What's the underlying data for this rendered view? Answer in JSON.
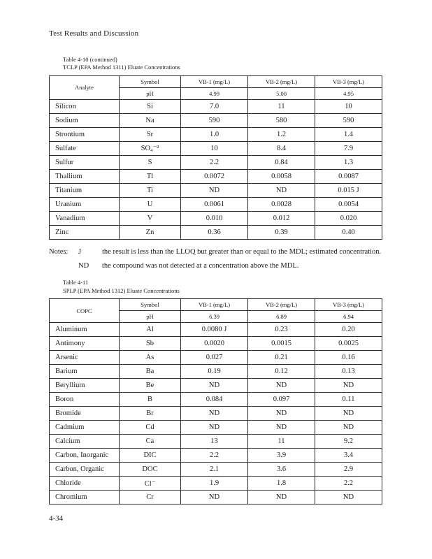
{
  "page": {
    "header": "Test Results and Discussion",
    "footer": "4-34"
  },
  "table_tclp": {
    "caption_line1": "Table 4-10 (continued)",
    "caption_line2": "TCLP (EPA Method 1311) Eluate Concentrations",
    "col_headers": [
      "Analyte",
      "Symbol",
      "VB-1 (mg/L)",
      "VB-2 (mg/L)",
      "VB-3 (mg/L)"
    ],
    "ph_row": [
      "pH",
      "4.99",
      "5.00",
      "4.95"
    ],
    "rows": [
      [
        "Silicon",
        "Si",
        "7.0",
        "11",
        "10"
      ],
      [
        "Sodium",
        "Na",
        "590",
        "580",
        "590"
      ],
      [
        "Strontium",
        "Sr",
        "1.0",
        "1.2",
        "1.4"
      ],
      [
        "Sulfate",
        "SO₄⁻²",
        "10",
        "8.4",
        "7.9"
      ],
      [
        "Sulfur",
        "S",
        "2.2",
        "0.84",
        "1.3"
      ],
      [
        "Thallium",
        "Tl",
        "0.0072",
        "0.0058",
        "0.0087"
      ],
      [
        "Titanium",
        "Ti",
        "ND",
        "ND",
        "0.015 J"
      ],
      [
        "Uranium",
        "U",
        "0.0061",
        "0.0028",
        "0.0054"
      ],
      [
        "Vanadium",
        "V",
        "0.010",
        "0.012",
        "0.020"
      ],
      [
        "Zinc",
        "Zn",
        "0.36",
        "0.39",
        "0.40"
      ]
    ]
  },
  "notes": {
    "label": "Notes:",
    "items": [
      {
        "symbol": "J",
        "text": "the result is less than the LLOQ but greater than or equal to the MDL; estimated concentration."
      },
      {
        "symbol": "ND",
        "text": "the compound was not detected at a concentration above the MDL."
      }
    ]
  },
  "table_splp": {
    "caption_line1": "Table 4-11",
    "caption_line2": "SPLP (EPA Method 1312) Eluate Concentrations",
    "col_headers": [
      "COPC",
      "Symbol",
      "VB-1 (mg/L)",
      "VB-2 (mg/L)",
      "VB-3 (mg/L)"
    ],
    "ph_row": [
      "pH",
      "6.39",
      "6.89",
      "6.94"
    ],
    "rows": [
      [
        "Aluminum",
        "Al",
        "0.0080 J",
        "0.23",
        "0.20"
      ],
      [
        "Antimony",
        "Sb",
        "0.0020",
        "0.0015",
        "0.0025"
      ],
      [
        "Arsenic",
        "As",
        "0.027",
        "0.21",
        "0.16"
      ],
      [
        "Barium",
        "Ba",
        "0.19",
        "0.12",
        "0.13"
      ],
      [
        "Beryllium",
        "Be",
        "ND",
        "ND",
        "ND"
      ],
      [
        "Boron",
        "B",
        "0.084",
        "0.097",
        "0.11"
      ],
      [
        "Bromide",
        "Br",
        "ND",
        "ND",
        "ND"
      ],
      [
        "Cadmium",
        "Cd",
        "ND",
        "ND",
        "ND"
      ],
      [
        "Calcium",
        "Ca",
        "13",
        "11",
        "9.2"
      ],
      [
        "Carbon, Inorganic",
        "DIC",
        "2.2",
        "3.9",
        "3.4"
      ],
      [
        "Carbon, Organic",
        "DOC",
        "2.1",
        "3.6",
        "2.9"
      ],
      [
        "Chloride",
        "Cl⁻",
        "1.9",
        "1.8",
        "2.2"
      ],
      [
        "Chromium",
        "Cr",
        "ND",
        "ND",
        "ND"
      ]
    ]
  }
}
